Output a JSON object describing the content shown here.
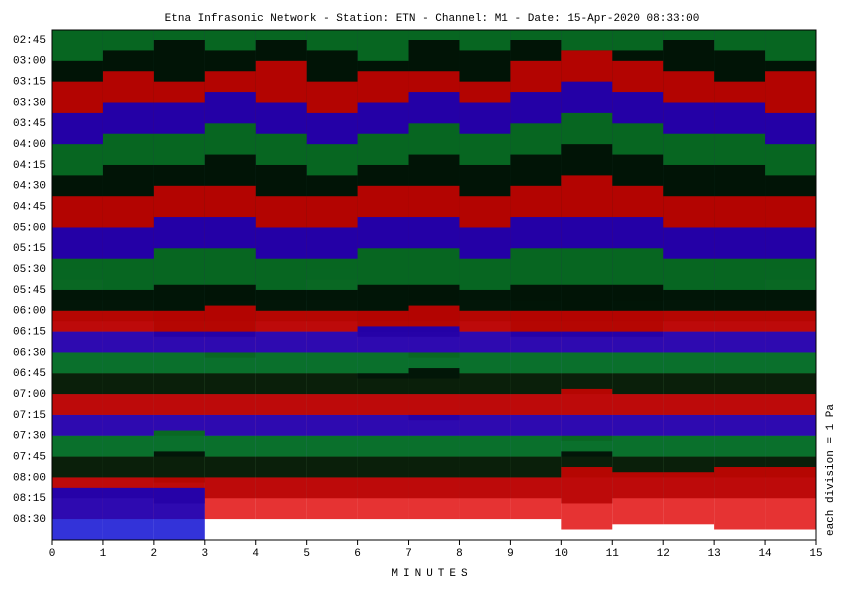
{
  "chart_data": {
    "type": "helicorder",
    "title": "Etna Infrasonic Network - Station: ETN - Channel: M1 - Date: 15-Apr-2020 08:33:00",
    "x_label": "MINUTES",
    "y2_label": "each division = 1 Pa",
    "xlim": [
      0,
      15
    ],
    "xticks": [
      0,
      1,
      2,
      3,
      4,
      5,
      6,
      7,
      8,
      9,
      10,
      11,
      12,
      13,
      14,
      15
    ],
    "series": [
      {
        "name": "02:45",
        "color": "#008000",
        "values": [
          9,
          10,
          9,
          11,
          10,
          9,
          10,
          11,
          10,
          9,
          10,
          11,
          10,
          9,
          10
        ]
      },
      {
        "name": "03:00",
        "color": "#000000",
        "values": [
          10,
          9,
          10,
          10,
          11,
          10,
          9,
          10,
          11,
          10,
          9,
          10,
          10,
          11,
          10
        ]
      },
      {
        "name": "03:15",
        "color": "#e00000",
        "values": [
          9,
          11,
          10,
          9,
          10,
          11,
          10,
          9,
          10,
          10,
          11,
          9,
          10,
          10,
          9
        ]
      },
      {
        "name": "03:30",
        "color": "#0000d0",
        "values": [
          10,
          10,
          9,
          11,
          10,
          9,
          11,
          10,
          9,
          10,
          10,
          11,
          9,
          10,
          11
        ]
      },
      {
        "name": "03:45",
        "color": "#008000",
        "values": [
          9,
          10,
          10,
          9,
          11,
          10,
          10,
          9,
          10,
          11,
          9,
          10,
          11,
          10,
          9
        ]
      },
      {
        "name": "04:00",
        "color": "#000000",
        "values": [
          8,
          9,
          10,
          9,
          10,
          9,
          8,
          10,
          9,
          10,
          9,
          9,
          10,
          9,
          8
        ]
      },
      {
        "name": "04:15",
        "color": "#e00000",
        "values": [
          8,
          9,
          8,
          9,
          10,
          8,
          9,
          9,
          8,
          10,
          11,
          10,
          9,
          8,
          9
        ]
      },
      {
        "name": "04:30",
        "color": "#0000d0",
        "values": [
          7,
          8,
          8,
          9,
          8,
          7,
          8,
          9,
          8,
          9,
          10,
          9,
          8,
          8,
          7
        ]
      },
      {
        "name": "04:45",
        "color": "#008000",
        "values": [
          6,
          7,
          7,
          8,
          7,
          6,
          7,
          8,
          7,
          8,
          9,
          8,
          7,
          7,
          6
        ]
      },
      {
        "name": "05:00",
        "color": "#000000",
        "values": [
          5,
          6,
          6,
          7,
          6,
          5,
          6,
          7,
          6,
          7,
          8,
          7,
          6,
          6,
          5
        ]
      },
      {
        "name": "05:15",
        "color": "#e00000",
        "values": [
          5,
          5,
          6,
          6,
          5,
          5,
          6,
          6,
          5,
          6,
          7,
          6,
          5,
          5,
          5
        ]
      },
      {
        "name": "05:30",
        "color": "#0000d0",
        "values": [
          4,
          4,
          5,
          5,
          4,
          4,
          5,
          5,
          4,
          5,
          5,
          5,
          4,
          4,
          4
        ]
      },
      {
        "name": "05:45",
        "color": "#008000",
        "values": [
          3,
          3,
          4,
          4,
          3,
          3,
          4,
          4,
          3,
          4,
          4,
          4,
          3,
          3,
          3
        ]
      },
      {
        "name": "06:00",
        "color": "#000000",
        "values": [
          2,
          2,
          2.5,
          2.5,
          2,
          2,
          2.5,
          2.5,
          2,
          2.5,
          2.5,
          2.5,
          2,
          2,
          2
        ]
      },
      {
        "name": "06:15",
        "color": "#e00000",
        "values": [
          2,
          2,
          2,
          2.5,
          2,
          2,
          2,
          2.5,
          2,
          2,
          2,
          2,
          2,
          2,
          2
        ]
      },
      {
        "name": "06:30",
        "color": "#0000d0",
        "values": [
          2,
          2,
          2,
          2,
          2,
          2,
          2.5,
          2.5,
          2,
          2,
          2,
          2,
          2,
          2,
          2
        ]
      },
      {
        "name": "06:45",
        "color": "#008000",
        "values": [
          2,
          2,
          2,
          2,
          2,
          2,
          2,
          2,
          2,
          2,
          2,
          2,
          2,
          2,
          2
        ]
      },
      {
        "name": "07:00",
        "color": "#000000",
        "values": [
          2,
          2,
          2,
          2,
          2,
          2,
          2,
          2.5,
          2,
          2,
          2,
          2,
          2,
          2,
          2
        ]
      },
      {
        "name": "07:15",
        "color": "#e00000",
        "values": [
          2,
          2,
          2,
          2,
          2,
          2,
          2,
          2,
          2,
          2,
          2.5,
          2,
          2,
          2,
          2
        ]
      },
      {
        "name": "07:30",
        "color": "#0000d0",
        "values": [
          2,
          2,
          2,
          2,
          2,
          2,
          2,
          2,
          2,
          2,
          2,
          2,
          2,
          2,
          2
        ]
      },
      {
        "name": "07:45",
        "color": "#008000",
        "values": [
          2,
          2,
          2.5,
          2,
          2,
          2,
          2,
          2,
          2,
          2,
          2,
          2,
          2,
          2,
          2
        ]
      },
      {
        "name": "08:00",
        "color": "#000000",
        "values": [
          2,
          2,
          2.5,
          2,
          2,
          2,
          2,
          2,
          2,
          2,
          2.5,
          2,
          2,
          2,
          2
        ]
      },
      {
        "name": "08:15",
        "color": "#e00000",
        "values": [
          2,
          2,
          2,
          2,
          2,
          2,
          2,
          2,
          2,
          2,
          3,
          2.5,
          2.5,
          3,
          3
        ]
      },
      {
        "name": "08:30",
        "color": "#0000d0",
        "values": [
          3,
          3,
          3,
          null,
          null,
          null,
          null,
          null,
          null,
          null,
          null,
          null,
          null,
          null,
          null
        ]
      }
    ]
  }
}
